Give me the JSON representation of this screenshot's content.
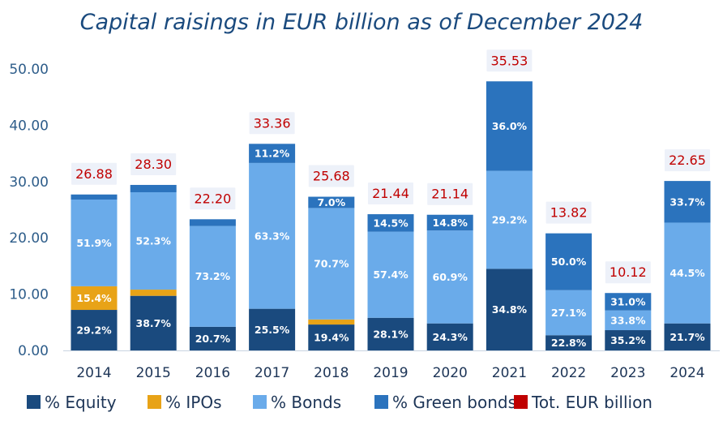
{
  "chart_data": {
    "type": "bar",
    "stacked": true,
    "title": "Capital raisings in EUR billion as of December 2024",
    "categories": [
      "2014",
      "2015",
      "2016",
      "2017",
      "2018",
      "2019",
      "2020",
      "2021",
      "2022",
      "2023",
      "2024"
    ],
    "y_ticks": [
      "0.00",
      "10.00",
      "20.00",
      "30.00",
      "40.00",
      "50.00"
    ],
    "ylim": [
      0,
      50
    ],
    "grid": false,
    "legend_position": "bottom",
    "series": [
      {
        "name": "% Equity",
        "color": "#1a4a7e",
        "values": [
          7.2,
          9.7,
          4.2,
          7.4,
          4.6,
          5.8,
          4.8,
          14.5,
          2.7,
          3.6,
          4.8
        ],
        "labels": [
          "29.2%",
          "38.7%",
          "20.7%",
          "25.5%",
          "19.4%",
          "28.1%",
          "24.3%",
          "34.8%",
          "22.8%",
          "35.2%",
          "21.7%"
        ]
      },
      {
        "name": "% IPOs",
        "color": "#e8a317",
        "values": [
          4.2,
          1.1,
          0,
          0,
          0.9,
          0,
          0,
          0,
          0,
          0,
          0
        ],
        "labels": [
          "15.4%",
          "",
          "",
          "",
          "",
          "",
          "",
          "",
          "",
          "",
          ""
        ]
      },
      {
        "name": "% Bonds",
        "color": "#6aabea",
        "values": [
          15.4,
          17.3,
          17.9,
          25.9,
          19.8,
          15.3,
          16.5,
          17.4,
          8.0,
          3.5,
          17.9
        ],
        "labels": [
          "51.9%",
          "52.3%",
          "73.2%",
          "63.3%",
          "70.7%",
          "57.4%",
          "60.9%",
          "29.2%",
          "27.1%",
          "33.8%",
          "44.5%"
        ]
      },
      {
        "name": "% Green bonds",
        "color": "#2b73bd",
        "values": [
          0.9,
          1.3,
          1.2,
          3.4,
          2.0,
          3.1,
          2.8,
          15.9,
          10.1,
          3.1,
          7.4
        ],
        "labels": [
          "",
          "",
          "",
          "11.2%",
          "7.0%",
          "14.5%",
          "14.8%",
          "36.0%",
          "50.0%",
          "31.0%",
          "33.7%"
        ]
      }
    ],
    "totals": {
      "name": "Tot. EUR billion",
      "color": "#c00000",
      "labels": [
        "26.88",
        "28.30",
        "22.20",
        "33.36",
        "25.68",
        "21.44",
        "21.14",
        "35.53",
        "13.82",
        "10.12",
        "22.65"
      ]
    }
  }
}
